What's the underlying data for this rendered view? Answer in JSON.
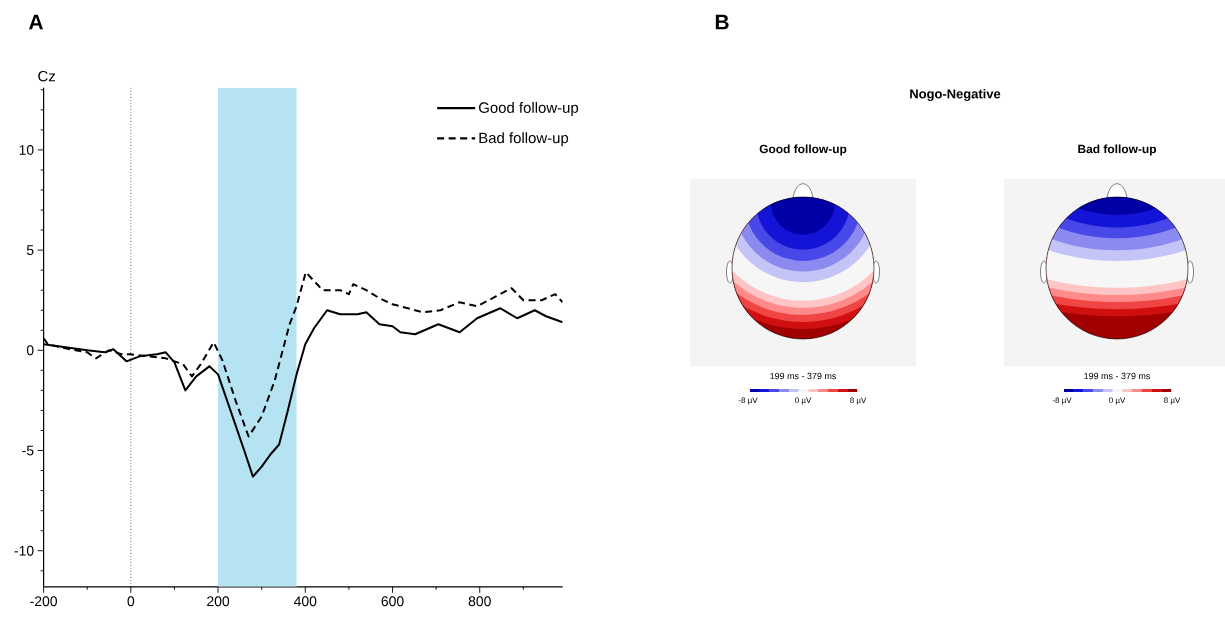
{
  "chart_data": [
    {
      "type": "line",
      "ylabel": "Cz",
      "annotations": [
        "A"
      ],
      "xlim": [
        -200,
        990
      ],
      "ylim": [
        -11.8,
        13.1
      ],
      "xticks": [
        -200,
        0,
        200,
        400,
        600,
        800
      ],
      "yticks": [
        -10,
        -5,
        0,
        5,
        10
      ],
      "legend": "top right",
      "bands": [
        {
          "axis": "x",
          "from": 200,
          "to": 380,
          "color": "#b5e3f1"
        }
      ],
      "ref_lines": [
        {
          "axis": "x",
          "value": 0,
          "color": "#000000",
          "line_style": "dotted"
        }
      ],
      "series": [
        {
          "name": "Good follow-up",
          "color": "#000000",
          "line_style": "solid",
          "x": [
            -200,
            -150,
            -100,
            -60,
            -40,
            -10,
            20,
            60,
            80,
            100,
            125,
            150,
            180,
            200,
            230,
            260,
            280,
            300,
            320,
            340,
            360,
            380,
            400,
            420,
            450,
            480,
            520,
            540,
            570,
            600,
            618,
            652,
            705,
            754,
            794,
            847,
            886,
            926,
            952,
            990
          ],
          "values": [
            0.3,
            0.15,
            0.0,
            -0.1,
            0.05,
            -0.55,
            -0.3,
            -0.2,
            -0.1,
            -0.6,
            -2.0,
            -1.3,
            -0.8,
            -1.2,
            -3.1,
            -5.0,
            -6.3,
            -5.8,
            -5.2,
            -4.7,
            -3.0,
            -1.2,
            0.3,
            1.1,
            2.0,
            1.8,
            1.8,
            1.9,
            1.3,
            1.2,
            0.9,
            0.8,
            1.3,
            0.9,
            1.6,
            2.1,
            1.6,
            2.0,
            1.7,
            1.4
          ]
        },
        {
          "name": "Bad follow-up",
          "color": "#000000",
          "line_style": "dashed",
          "x": [
            -200,
            -190,
            -150,
            -100,
            -80,
            -50,
            -20,
            0,
            40,
            80,
            120,
            140,
            160,
            190,
            210,
            240,
            270,
            300,
            330,
            364,
            380,
            401,
            440,
            480,
            500,
            510,
            540,
            570,
            600,
            618,
            669,
            710,
            754,
            794,
            838,
            873,
            900,
            942,
            973,
            990
          ],
          "values": [
            0.6,
            0.3,
            0.1,
            -0.1,
            -0.4,
            0.0,
            -0.2,
            -0.2,
            -0.3,
            -0.4,
            -0.7,
            -1.3,
            -0.7,
            0.4,
            -0.5,
            -2.5,
            -4.3,
            -3.3,
            -1.5,
            1.3,
            2.2,
            3.9,
            3.0,
            3.0,
            2.8,
            3.3,
            3.0,
            2.6,
            2.3,
            2.2,
            1.9,
            2.0,
            2.4,
            2.2,
            2.7,
            3.1,
            2.5,
            2.5,
            2.8,
            2.4
          ]
        }
      ]
    },
    {
      "type": "other",
      "title": "Nogo-Negative",
      "annotations": [
        "B",
        "Good follow-up",
        "Bad follow-up",
        "199 ms - 379 ms",
        "199 ms - 379 ms",
        "-8 µV",
        "0 µV",
        "8 µV",
        "-8 µV",
        "0 µV",
        "8 µV"
      ]
    }
  ]
}
